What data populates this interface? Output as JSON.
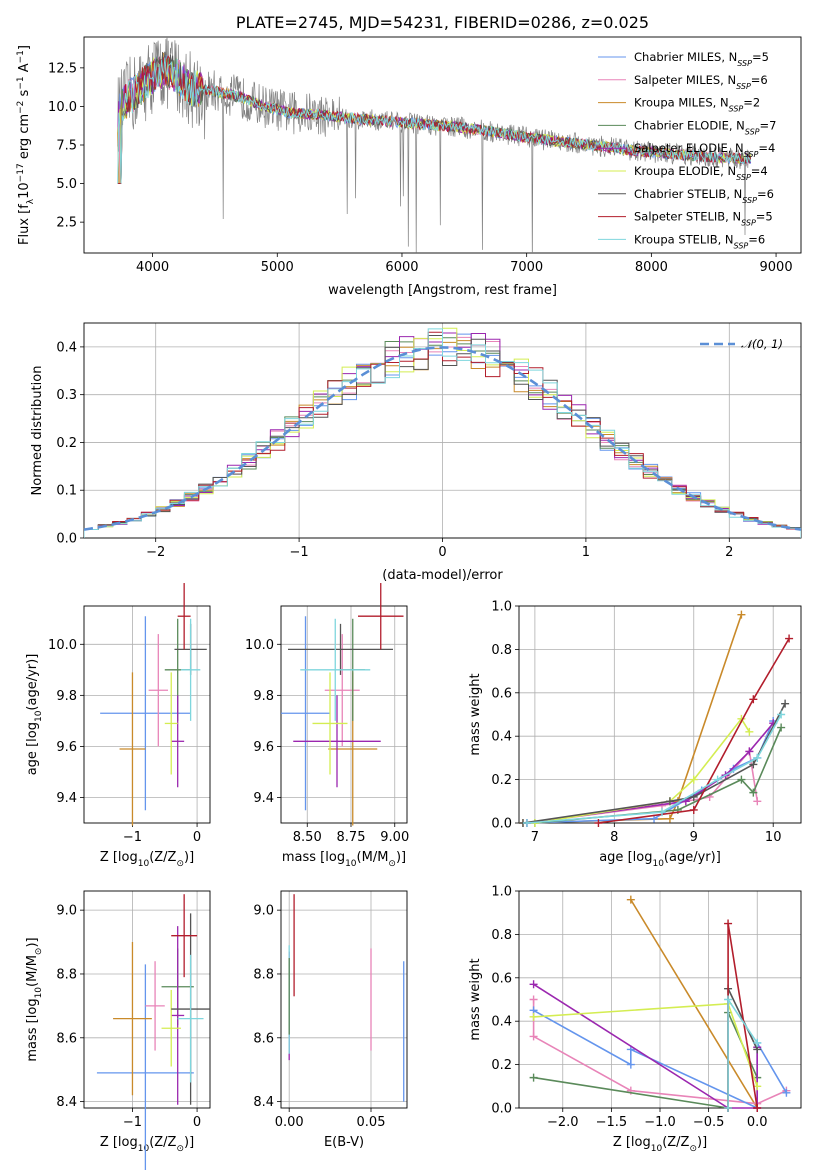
{
  "chart_data": [
    {
      "id": "spectrum",
      "type": "line",
      "title": "PLATE=2745, MJD=54231, FIBERID=0286, z=0.025",
      "xlabel": "wavelength [Angstrom, rest frame]",
      "ylabel": "Flux [f",
      "ylabel_sub": "λ",
      "ylabel_rest": "10",
      "ylabel_sup1": "−17",
      "ylabel_rest2": " erg cm",
      "ylabel_sup2": "−2",
      "ylabel_rest3": " s",
      "ylabel_sup3": "−1",
      "ylabel_rest4": " A",
      "ylabel_sup4": "−1",
      "ylabel_end": "]",
      "xlim": [
        3450,
        9200
      ],
      "ylim": [
        0.5,
        14.5
      ],
      "xticks": [
        4000,
        5000,
        6000,
        7000,
        8000,
        9000
      ],
      "yticks": [
        2.5,
        5.0,
        7.5,
        10.0,
        12.5
      ],
      "ytick_labels": [
        "2.5",
        "5.0",
        "7.5",
        "10.0",
        "12.5"
      ],
      "legend_position": "top-right",
      "series": [
        {
          "name": "Chabrier MILES",
          "nssp": "5",
          "color": "#6495ed"
        },
        {
          "name": "Salpeter MILES",
          "nssp": "6",
          "color": "#e884b8"
        },
        {
          "name": "Kroupa MILES",
          "nssp": "2",
          "color": "#c98a2a"
        },
        {
          "name": "Chabrier ELODIE",
          "nssp": "7",
          "color": "#5a8a5a"
        },
        {
          "name": "Salpeter ELODIE",
          "nssp": "4",
          "color": "#9b27af"
        },
        {
          "name": "Kroupa ELODIE",
          "nssp": "4",
          "color": "#d4ed52"
        },
        {
          "name": "Chabrier STELIB",
          "nssp": "6",
          "color": "#555555"
        },
        {
          "name": "Salpeter STELIB",
          "nssp": "5",
          "color": "#b21e2c"
        },
        {
          "name": "Kroupa STELIB",
          "nssp": "6",
          "color": "#7fd6dd"
        }
      ],
      "nssp_label": "N",
      "nssp_sub": "SSP",
      "data_color": "#808080",
      "continuum": {
        "x": [
          3720,
          3800,
          3900,
          4000,
          4100,
          4200,
          4300,
          4500,
          4700,
          4900,
          5100,
          5300,
          5500,
          5800,
          6100,
          6400,
          6700,
          7000,
          7300,
          7600,
          7900,
          8200,
          8500,
          8800
        ],
        "y": [
          9.5,
          10.5,
          11.2,
          12.0,
          12.4,
          12.0,
          11.2,
          11.0,
          10.6,
          10.0,
          9.6,
          9.5,
          9.3,
          9.1,
          8.9,
          8.7,
          8.4,
          8.0,
          7.7,
          7.4,
          7.1,
          6.9,
          6.7,
          6.6
        ]
      }
    },
    {
      "id": "residuals",
      "type": "histogram",
      "xlabel": "(data-model)/error",
      "ylabel": "Normed distribution",
      "xlim": [
        -2.5,
        2.5
      ],
      "ylim": [
        0.0,
        0.45
      ],
      "xticks": [
        -2,
        -1,
        0,
        1,
        2
      ],
      "xtick_labels": [
        "−2",
        "−1",
        "0",
        "1",
        "2"
      ],
      "yticks": [
        0.0,
        0.1,
        0.2,
        0.3,
        0.4
      ],
      "ytick_labels": [
        "0.0",
        "0.1",
        "0.2",
        "0.3",
        "0.4"
      ],
      "gaussian_label": "𝒩(0, 1)",
      "gaussian_color": "#5b8fd6",
      "bin_width": 0.1,
      "bin_start": -2.5
    },
    {
      "id": "age_vs_Z",
      "type": "errorbar",
      "xlabel": "Z [log",
      "xlabel_sub": "10",
      "xlabel_rest": "(Z/Z",
      "xlabel_sun": "⊙",
      "xlabel_end": ")]",
      "ylabel": "age  [log",
      "ylabel_sub": "10",
      "ylabel_rest": "(age/yr)]",
      "xlim": [
        -1.75,
        0.2
      ],
      "ylim": [
        9.3,
        10.15
      ],
      "xticks": [
        -1,
        0
      ],
      "xtick_labels": [
        "−1",
        "0"
      ],
      "yticks": [
        9.4,
        9.6,
        9.8,
        10.0
      ],
      "ytick_labels": [
        "9.4",
        "9.6",
        "9.8",
        "10.0"
      ],
      "points": [
        {
          "color": "#6495ed",
          "x": -0.8,
          "xerr": 0.7,
          "y": 9.73,
          "yerr": 0.38
        },
        {
          "color": "#e884b8",
          "x": -0.6,
          "xerr": 0.15,
          "y": 9.82,
          "yerr": 0.22
        },
        {
          "color": "#c98a2a",
          "x": -1.0,
          "xerr": 0.2,
          "y": 9.59,
          "yerr": 0.3
        },
        {
          "color": "#5a8a5a",
          "x": -0.3,
          "xerr": 0.2,
          "y": 9.9,
          "yerr": 0.2
        },
        {
          "color": "#9b27af",
          "x": -0.3,
          "xerr": 0.1,
          "y": 9.62,
          "yerr": 0.18
        },
        {
          "color": "#d4ed52",
          "x": -0.4,
          "xerr": 0.1,
          "y": 9.69,
          "yerr": 0.2
        },
        {
          "color": "#555555",
          "x": -0.1,
          "xerr": 0.25,
          "y": 9.98,
          "yerr": 0.1
        },
        {
          "color": "#b21e2c",
          "x": -0.2,
          "xerr": 0.1,
          "y": 10.11,
          "yerr": 0.13
        },
        {
          "color": "#7fd6dd",
          "x": -0.1,
          "xerr": 0.15,
          "y": 9.9,
          "yerr": 0.2
        }
      ]
    },
    {
      "id": "age_vs_mass",
      "type": "errorbar",
      "xlabel": "mass [log",
      "xlabel_sub": "10",
      "xlabel_rest": "(M/M",
      "xlabel_sun": "⊙",
      "xlabel_end": ")]",
      "xlim": [
        8.35,
        9.07
      ],
      "ylim": [
        9.3,
        10.15
      ],
      "xticks": [
        8.5,
        8.75,
        9.0
      ],
      "xtick_labels": [
        "8.50",
        "8.75",
        "9.00"
      ],
      "yticks": [
        9.4,
        9.6,
        9.8,
        10.0
      ],
      "ytick_labels": [
        "9.4",
        "9.6",
        "9.8",
        "10.0"
      ],
      "points": [
        {
          "color": "#6495ed",
          "x": 8.49,
          "xerr": 0.14,
          "y": 9.73,
          "yerr": 0.38
        },
        {
          "color": "#e884b8",
          "x": 8.7,
          "xerr": 0.1,
          "y": 9.82,
          "yerr": 0.22
        },
        {
          "color": "#c98a2a",
          "x": 8.76,
          "xerr": 0.14,
          "y": 9.59,
          "yerr": 0.3
        },
        {
          "color": "#5a8a5a",
          "x": 8.76,
          "xerr": 0.07,
          "y": 9.9,
          "yerr": 0.2
        },
        {
          "color": "#9b27af",
          "x": 8.67,
          "xerr": 0.25,
          "y": 9.62,
          "yerr": 0.18
        },
        {
          "color": "#d4ed52",
          "x": 8.63,
          "xerr": 0.1,
          "y": 9.69,
          "yerr": 0.2
        },
        {
          "color": "#555555",
          "x": 8.69,
          "xerr": 0.3,
          "y": 9.98,
          "yerr": 0.1
        },
        {
          "color": "#b21e2c",
          "x": 8.92,
          "xerr": 0.13,
          "y": 10.11,
          "yerr": 0.13
        },
        {
          "color": "#7fd6dd",
          "x": 8.66,
          "xerr": 0.2,
          "y": 9.9,
          "yerr": 0.2
        }
      ]
    },
    {
      "id": "weight_vs_age",
      "type": "line",
      "xlabel": "age  [log",
      "xlabel_sub": "10",
      "xlabel_rest": "(age/yr)]",
      "ylabel": "mass weight",
      "xlim": [
        6.8,
        10.35
      ],
      "ylim": [
        0.0,
        1.0
      ],
      "xticks": [
        7,
        8,
        9,
        10
      ],
      "xtick_labels": [
        "7",
        "8",
        "9",
        "10"
      ],
      "yticks": [
        0.0,
        0.2,
        0.4,
        0.6,
        0.8,
        1.0
      ],
      "ytick_labels": [
        "0.0",
        "0.2",
        "0.4",
        "0.6",
        "0.8",
        "1.0"
      ],
      "series": [
        {
          "color": "#c98a2a",
          "x": [
            6.85,
            8.7,
            8.8,
            9.6
          ],
          "y": [
            0.0,
            0.02,
            0.1,
            0.96
          ]
        },
        {
          "color": "#e884b8",
          "x": [
            6.9,
            8.6,
            9.2,
            9.7,
            9.8
          ],
          "y": [
            0.0,
            0.08,
            0.12,
            0.33,
            0.1
          ]
        },
        {
          "color": "#6495ed",
          "x": [
            6.9,
            8.5,
            9.1,
            9.5,
            9.8,
            10.0
          ],
          "y": [
            0.0,
            0.02,
            0.15,
            0.25,
            0.3,
            0.47
          ]
        },
        {
          "color": "#5a8a5a",
          "x": [
            7.0,
            8.8,
            9.6,
            9.75,
            10.1
          ],
          "y": [
            0.0,
            0.06,
            0.2,
            0.14,
            0.44
          ]
        },
        {
          "color": "#9b27af",
          "x": [
            6.9,
            8.9,
            9.4,
            9.7,
            10.0
          ],
          "y": [
            0.0,
            0.1,
            0.22,
            0.33,
            0.46
          ]
        },
        {
          "color": "#d4ed52",
          "x": [
            7.0,
            8.7,
            9.0,
            9.6,
            9.7
          ],
          "y": [
            0.0,
            0.1,
            0.2,
            0.48,
            0.42
          ]
        },
        {
          "color": "#555555",
          "x": [
            6.85,
            8.7,
            9.0,
            9.75,
            10.15
          ],
          "y": [
            0.0,
            0.1,
            0.12,
            0.27,
            0.55
          ]
        },
        {
          "color": "#b21e2c",
          "x": [
            7.8,
            9.0,
            9.75,
            10.2
          ],
          "y": [
            0.0,
            0.06,
            0.57,
            0.85
          ]
        },
        {
          "color": "#7fd6dd",
          "x": [
            6.9,
            8.6,
            9.3,
            9.8,
            10.1
          ],
          "y": [
            0.0,
            0.05,
            0.2,
            0.3,
            0.5
          ]
        }
      ]
    },
    {
      "id": "mass_vs_Z",
      "type": "errorbar",
      "xlabel": "Z [log",
      "xlabel_sub": "10",
      "xlabel_rest": "(Z/Z",
      "xlabel_sun": "⊙",
      "xlabel_end": ")]",
      "ylabel": "mass [log",
      "ylabel_sub": "10",
      "ylabel_rest": "(M/M",
      "ylabel_sun": "⊙",
      "ylabel_end": ")]",
      "xlim": [
        -1.75,
        0.2
      ],
      "ylim": [
        8.38,
        9.06
      ],
      "xticks": [
        -1,
        0
      ],
      "xtick_labels": [
        "−1",
        "0"
      ],
      "yticks": [
        8.4,
        8.6,
        8.8,
        9.0
      ],
      "ytick_labels": [
        "8.4",
        "8.6",
        "8.8",
        "9.0"
      ],
      "points": [
        {
          "color": "#6495ed",
          "x": -0.8,
          "xerr": 0.75,
          "y": 8.49,
          "yerr": 0.34
        },
        {
          "color": "#e884b8",
          "x": -0.65,
          "xerr": 0.15,
          "y": 8.7,
          "yerr": 0.14
        },
        {
          "color": "#c98a2a",
          "x": -1.0,
          "xerr": 0.3,
          "y": 8.66,
          "yerr": 0.24
        },
        {
          "color": "#5a8a5a",
          "x": -0.3,
          "xerr": 0.25,
          "y": 8.76,
          "yerr": 0.12
        },
        {
          "color": "#9b27af",
          "x": -0.3,
          "xerr": 0.1,
          "y": 8.67,
          "yerr": 0.28
        },
        {
          "color": "#d4ed52",
          "x": -0.4,
          "xerr": 0.15,
          "y": 8.63,
          "yerr": 0.12
        },
        {
          "color": "#555555",
          "x": -0.1,
          "xerr": 0.3,
          "y": 8.69,
          "yerr": 0.3
        },
        {
          "color": "#b21e2c",
          "x": -0.2,
          "xerr": 0.2,
          "y": 8.92,
          "yerr": 0.13
        },
        {
          "color": "#7fd6dd",
          "x": -0.1,
          "xerr": 0.2,
          "y": 8.66,
          "yerr": 0.2
        }
      ]
    },
    {
      "id": "mass_vs_ebv",
      "type": "errorbar",
      "xlabel": "E(B-V)",
      "xlim": [
        -0.005,
        0.072
      ],
      "ylim": [
        8.38,
        9.06
      ],
      "xticks": [
        0.0,
        0.05
      ],
      "xtick_labels": [
        "0.00",
        "0.05"
      ],
      "yticks": [
        8.4,
        8.6,
        8.8,
        9.0
      ],
      "ytick_labels": [
        "8.4",
        "8.6",
        "8.8",
        "9.0"
      ],
      "points": [
        {
          "color": "#6495ed",
          "x": 0.07,
          "y": 8.62,
          "yerr": 0.22
        },
        {
          "color": "#e884b8",
          "x": 0.05,
          "y": 8.72,
          "yerr": 0.16
        },
        {
          "color": "#9b27af",
          "x": 0.0,
          "y": 8.7,
          "yerr": 0.17
        },
        {
          "color": "#b21e2c",
          "x": 0.003,
          "y": 8.89,
          "yerr": 0.16
        },
        {
          "color": "#7fd6dd",
          "x": 0.0,
          "y": 8.72,
          "yerr": 0.17
        },
        {
          "color": "#5a8a5a",
          "x": 0.0,
          "y": 8.73,
          "yerr": 0.12
        }
      ]
    },
    {
      "id": "weight_vs_Z",
      "type": "line",
      "xlabel": "Z [log",
      "xlabel_sub": "10",
      "xlabel_rest": "(Z/Z",
      "xlabel_sun": "⊙",
      "xlabel_end": ")]",
      "ylabel": "mass weight",
      "xlim": [
        -2.45,
        0.45
      ],
      "ylim": [
        0.0,
        1.0
      ],
      "xticks": [
        -2.0,
        -1.5,
        -1.0,
        -0.5,
        0.0
      ],
      "xtick_labels": [
        "−2.0",
        "−1.5",
        "−1.0",
        "−0.5",
        "0.0"
      ],
      "yticks": [
        0.0,
        0.2,
        0.4,
        0.6,
        0.8,
        1.0
      ],
      "ytick_labels": [
        "0.0",
        "0.2",
        "0.4",
        "0.6",
        "0.8",
        "1.0"
      ],
      "series": [
        {
          "color": "#c98a2a",
          "x": [
            -1.3,
            0.0
          ],
          "y": [
            0.96,
            0.0
          ]
        },
        {
          "color": "#e884b8",
          "x": [
            -2.3,
            -2.3,
            -1.3,
            0.0,
            0.3
          ],
          "y": [
            0.5,
            0.33,
            0.08,
            0.02,
            0.08
          ]
        },
        {
          "color": "#6495ed",
          "x": [
            -2.3,
            -1.3,
            -1.3,
            0.0,
            0.0,
            0.3
          ],
          "y": [
            0.45,
            0.2,
            0.27,
            0.0,
            0.3,
            0.07
          ]
        },
        {
          "color": "#5a8a5a",
          "x": [
            -2.3,
            -0.3,
            -0.3,
            0.0
          ],
          "y": [
            0.14,
            0.0,
            0.44,
            0.14
          ]
        },
        {
          "color": "#9b27af",
          "x": [
            -2.3,
            -0.3,
            0.0,
            0.0
          ],
          "y": [
            0.57,
            0.0,
            0.0,
            0.28
          ]
        },
        {
          "color": "#d4ed52",
          "x": [
            -2.3,
            -0.3,
            0.0
          ],
          "y": [
            0.42,
            0.48,
            0.1
          ]
        },
        {
          "color": "#555555",
          "x": [
            -0.3,
            -0.3,
            0.0
          ],
          "y": [
            0.0,
            0.55,
            0.27
          ]
        },
        {
          "color": "#b21e2c",
          "x": [
            -0.3,
            -0.3,
            0.0
          ],
          "y": [
            0.0,
            0.85,
            0.0
          ]
        },
        {
          "color": "#7fd6dd",
          "x": [
            -0.3,
            -0.3,
            0.0
          ],
          "y": [
            0.0,
            0.5,
            0.3
          ]
        }
      ]
    }
  ]
}
